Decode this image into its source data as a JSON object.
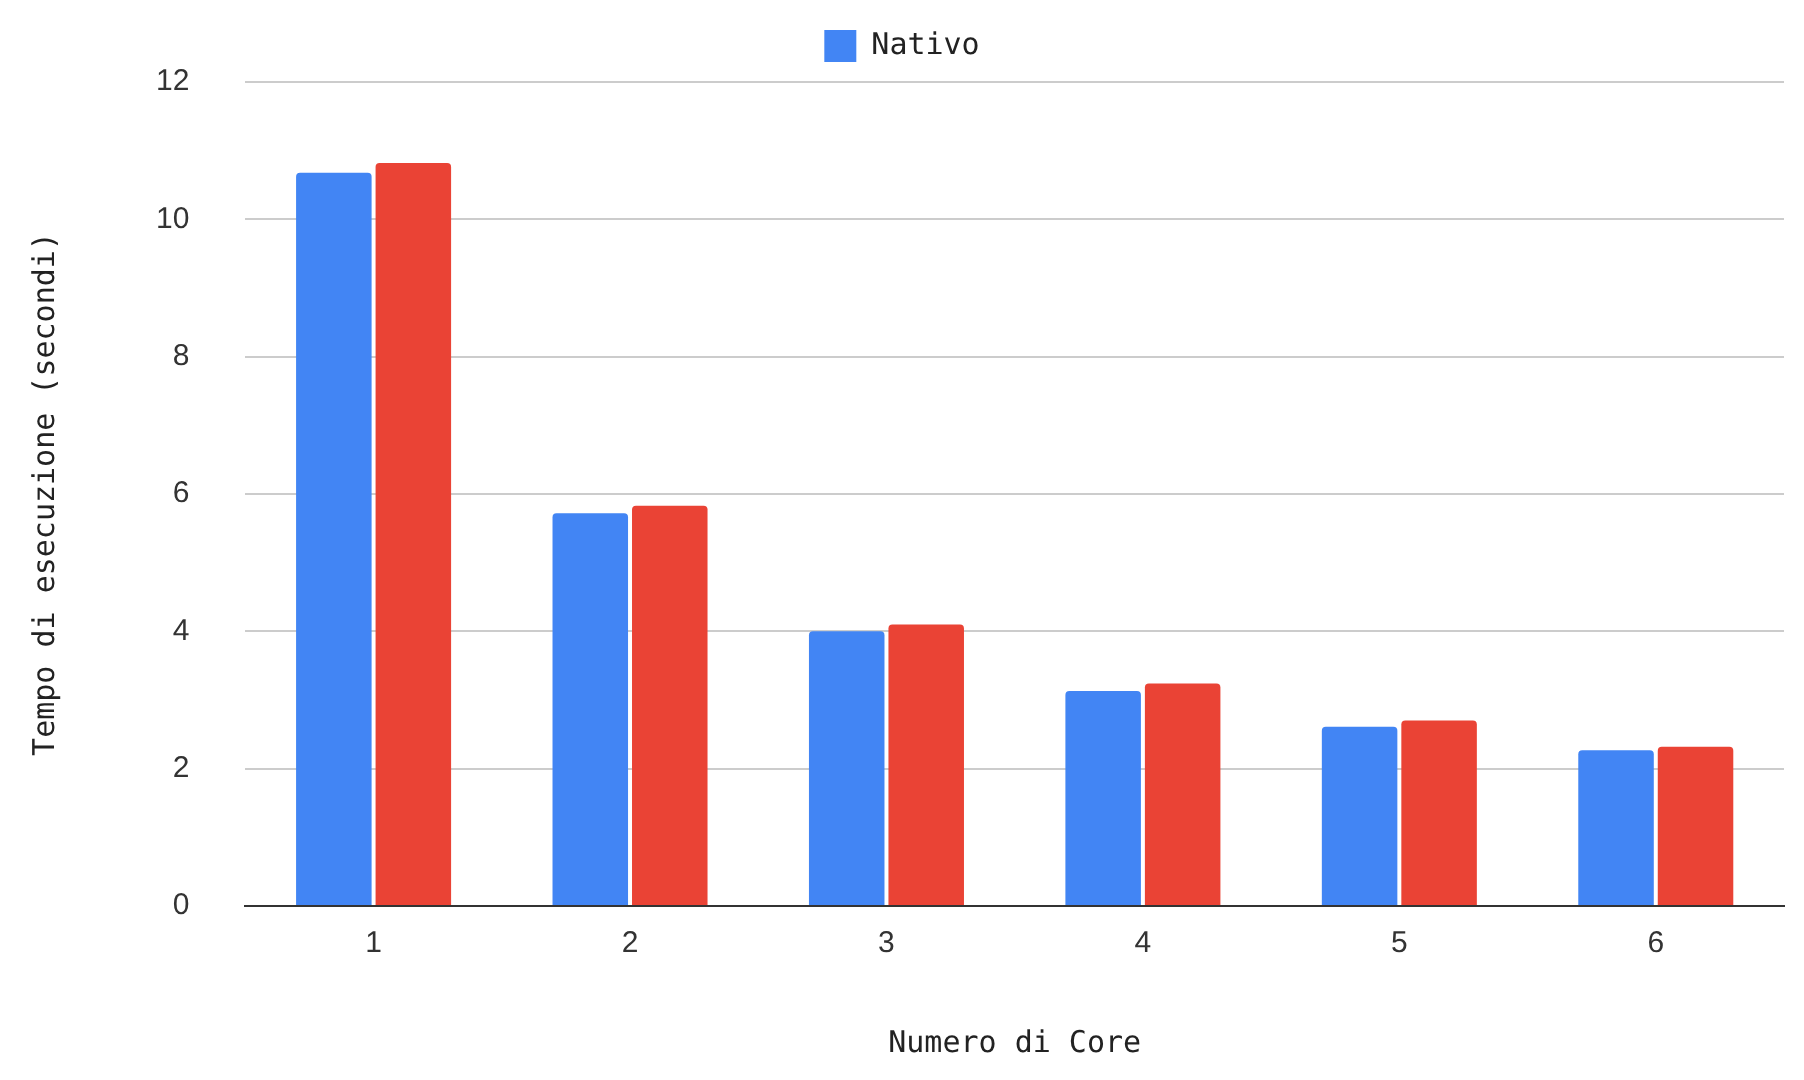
{
  "chart_data": {
    "type": "bar",
    "xlabel": "Numero di Core",
    "ylabel": "Tempo di esecuzione (secondi)",
    "categories": [
      "1",
      "2",
      "3",
      "4",
      "5",
      "6"
    ],
    "series": [
      {
        "name": "Nativo",
        "color": "#4285f4",
        "values": [
          10.68,
          5.72,
          4.0,
          3.13,
          2.61,
          2.27
        ]
      },
      {
        "color": "#ea4335",
        "values": [
          10.82,
          5.83,
          4.1,
          3.24,
          2.7,
          2.32
        ]
      }
    ],
    "ylim": [
      0,
      12
    ],
    "yticks": [
      0,
      2,
      4,
      6,
      8,
      10,
      12
    ],
    "grid": "y",
    "legend": "top"
  }
}
